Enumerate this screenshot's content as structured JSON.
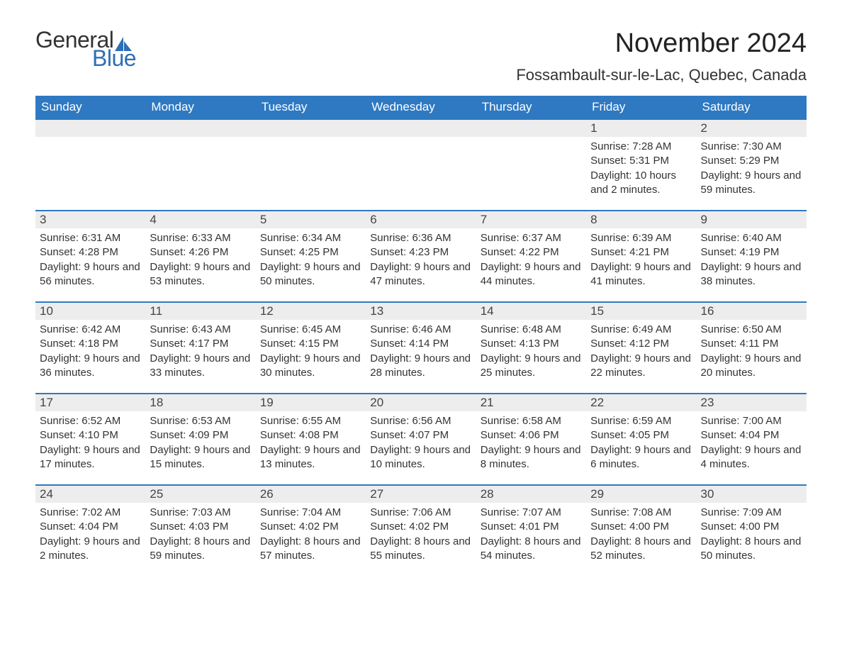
{
  "logo": {
    "text_general": "General",
    "text_blue": "Blue",
    "sail_color": "#2f6eb5"
  },
  "title": "November 2024",
  "location": "Fossambault-sur-le-Lac, Quebec, Canada",
  "header_bg": "#2f79c2",
  "header_text_color": "#ffffff",
  "daynum_bg": "#ededed",
  "border_color": "#2f79c2",
  "body_bg": "#ffffff",
  "text_color": "#333333",
  "font_family": "Arial, Helvetica, sans-serif",
  "title_fontsize": 38,
  "location_fontsize": 22,
  "header_fontsize": 17,
  "daynum_fontsize": 17,
  "body_fontsize": 15,
  "columns": [
    "Sunday",
    "Monday",
    "Tuesday",
    "Wednesday",
    "Thursday",
    "Friday",
    "Saturday"
  ],
  "weeks": [
    [
      {
        "empty": true
      },
      {
        "empty": true
      },
      {
        "empty": true
      },
      {
        "empty": true
      },
      {
        "empty": true
      },
      {
        "day": "1",
        "sunrise": "7:28 AM",
        "sunset": "5:31 PM",
        "daylight": "10 hours and 2 minutes."
      },
      {
        "day": "2",
        "sunrise": "7:30 AM",
        "sunset": "5:29 PM",
        "daylight": "9 hours and 59 minutes."
      }
    ],
    [
      {
        "day": "3",
        "sunrise": "6:31 AM",
        "sunset": "4:28 PM",
        "daylight": "9 hours and 56 minutes."
      },
      {
        "day": "4",
        "sunrise": "6:33 AM",
        "sunset": "4:26 PM",
        "daylight": "9 hours and 53 minutes."
      },
      {
        "day": "5",
        "sunrise": "6:34 AM",
        "sunset": "4:25 PM",
        "daylight": "9 hours and 50 minutes."
      },
      {
        "day": "6",
        "sunrise": "6:36 AM",
        "sunset": "4:23 PM",
        "daylight": "9 hours and 47 minutes."
      },
      {
        "day": "7",
        "sunrise": "6:37 AM",
        "sunset": "4:22 PM",
        "daylight": "9 hours and 44 minutes."
      },
      {
        "day": "8",
        "sunrise": "6:39 AM",
        "sunset": "4:21 PM",
        "daylight": "9 hours and 41 minutes."
      },
      {
        "day": "9",
        "sunrise": "6:40 AM",
        "sunset": "4:19 PM",
        "daylight": "9 hours and 38 minutes."
      }
    ],
    [
      {
        "day": "10",
        "sunrise": "6:42 AM",
        "sunset": "4:18 PM",
        "daylight": "9 hours and 36 minutes."
      },
      {
        "day": "11",
        "sunrise": "6:43 AM",
        "sunset": "4:17 PM",
        "daylight": "9 hours and 33 minutes."
      },
      {
        "day": "12",
        "sunrise": "6:45 AM",
        "sunset": "4:15 PM",
        "daylight": "9 hours and 30 minutes."
      },
      {
        "day": "13",
        "sunrise": "6:46 AM",
        "sunset": "4:14 PM",
        "daylight": "9 hours and 28 minutes."
      },
      {
        "day": "14",
        "sunrise": "6:48 AM",
        "sunset": "4:13 PM",
        "daylight": "9 hours and 25 minutes."
      },
      {
        "day": "15",
        "sunrise": "6:49 AM",
        "sunset": "4:12 PM",
        "daylight": "9 hours and 22 minutes."
      },
      {
        "day": "16",
        "sunrise": "6:50 AM",
        "sunset": "4:11 PM",
        "daylight": "9 hours and 20 minutes."
      }
    ],
    [
      {
        "day": "17",
        "sunrise": "6:52 AM",
        "sunset": "4:10 PM",
        "daylight": "9 hours and 17 minutes."
      },
      {
        "day": "18",
        "sunrise": "6:53 AM",
        "sunset": "4:09 PM",
        "daylight": "9 hours and 15 minutes."
      },
      {
        "day": "19",
        "sunrise": "6:55 AM",
        "sunset": "4:08 PM",
        "daylight": "9 hours and 13 minutes."
      },
      {
        "day": "20",
        "sunrise": "6:56 AM",
        "sunset": "4:07 PM",
        "daylight": "9 hours and 10 minutes."
      },
      {
        "day": "21",
        "sunrise": "6:58 AM",
        "sunset": "4:06 PM",
        "daylight": "9 hours and 8 minutes."
      },
      {
        "day": "22",
        "sunrise": "6:59 AM",
        "sunset": "4:05 PM",
        "daylight": "9 hours and 6 minutes."
      },
      {
        "day": "23",
        "sunrise": "7:00 AM",
        "sunset": "4:04 PM",
        "daylight": "9 hours and 4 minutes."
      }
    ],
    [
      {
        "day": "24",
        "sunrise": "7:02 AM",
        "sunset": "4:04 PM",
        "daylight": "9 hours and 2 minutes."
      },
      {
        "day": "25",
        "sunrise": "7:03 AM",
        "sunset": "4:03 PM",
        "daylight": "8 hours and 59 minutes."
      },
      {
        "day": "26",
        "sunrise": "7:04 AM",
        "sunset": "4:02 PM",
        "daylight": "8 hours and 57 minutes."
      },
      {
        "day": "27",
        "sunrise": "7:06 AM",
        "sunset": "4:02 PM",
        "daylight": "8 hours and 55 minutes."
      },
      {
        "day": "28",
        "sunrise": "7:07 AM",
        "sunset": "4:01 PM",
        "daylight": "8 hours and 54 minutes."
      },
      {
        "day": "29",
        "sunrise": "7:08 AM",
        "sunset": "4:00 PM",
        "daylight": "8 hours and 52 minutes."
      },
      {
        "day": "30",
        "sunrise": "7:09 AM",
        "sunset": "4:00 PM",
        "daylight": "8 hours and 50 minutes."
      }
    ]
  ],
  "labels": {
    "sunrise": "Sunrise: ",
    "sunset": "Sunset: ",
    "daylight": "Daylight: "
  }
}
